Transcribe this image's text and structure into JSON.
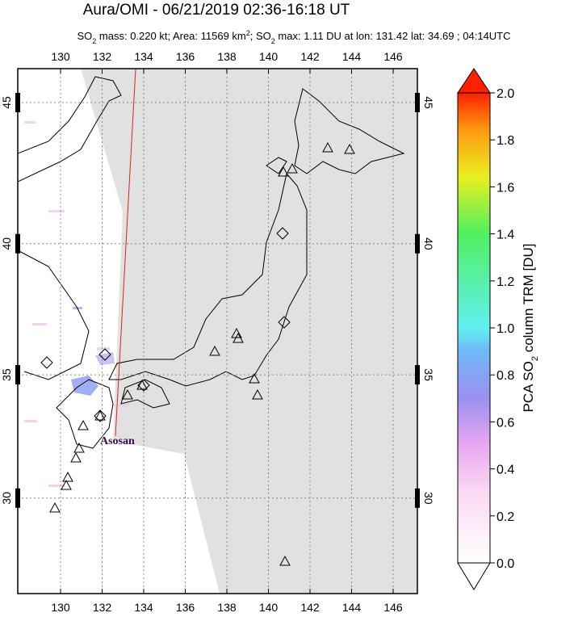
{
  "title": "Aura/OMI - 06/21/2019 02:36-16:18 UT",
  "subtitle_parts": [
    "SO",
    "2",
    " mass: 0.220 kt; Area: 11569 km",
    "2",
    "; SO",
    "2",
    " max: 1.11 DU at lon: 131.42 lat: 34.69 ; 04:14UTC"
  ],
  "map": {
    "lon_ticks": [
      130,
      132,
      134,
      136,
      138,
      140,
      142,
      144,
      146
    ],
    "lat_ticks": [
      30,
      35,
      40,
      45
    ],
    "annotation": "Asosan"
  },
  "colorbar": {
    "label_parts": [
      "PCA SO",
      "2",
      " column TRM [DU]"
    ],
    "ticks": [
      {
        "value": 0,
        "label": "0.0"
      },
      {
        "value": 0.2,
        "label": "0.2"
      },
      {
        "value": 0.4,
        "label": "0.4"
      },
      {
        "value": 0.6,
        "label": "0.6"
      },
      {
        "value": 0.8,
        "label": "0.8"
      },
      {
        "value": 1,
        "label": "1.0"
      },
      {
        "value": 1.2,
        "label": "1.2"
      },
      {
        "value": 1.4,
        "label": "1.4"
      },
      {
        "value": 1.6,
        "label": "1.6"
      },
      {
        "value": 1.8,
        "label": "1.8"
      },
      {
        "value": 2,
        "label": "2.0"
      }
    ]
  }
}
